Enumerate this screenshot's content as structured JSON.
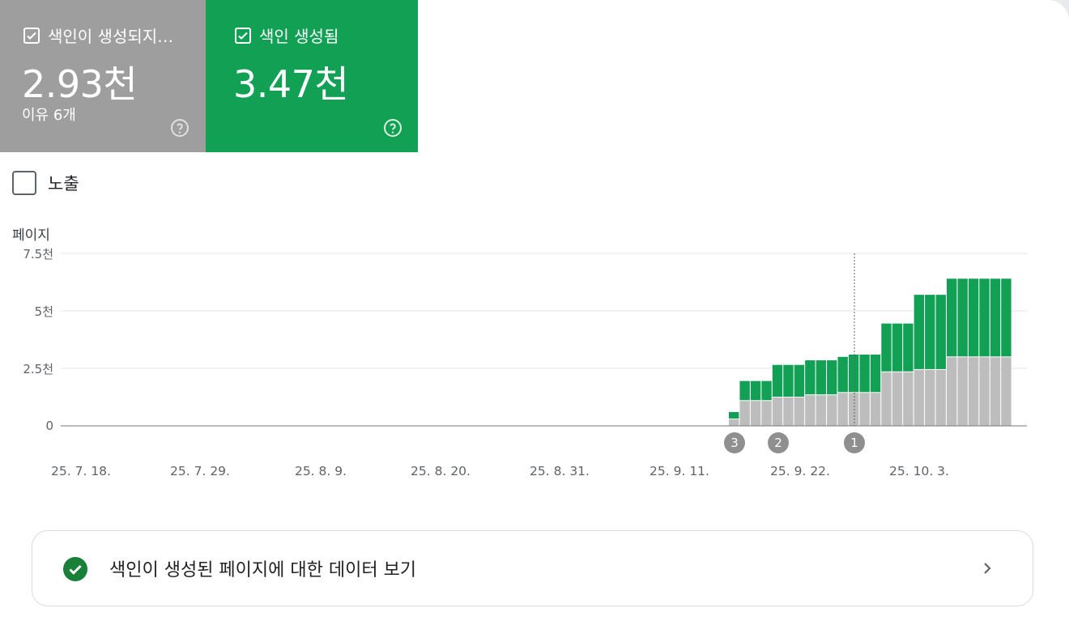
{
  "tiles": {
    "not_indexed": {
      "label": "색인이 생성되지…",
      "value": "2.93천",
      "sub": "이유 6개",
      "color": "#9e9e9e"
    },
    "indexed": {
      "label": "색인 생성됨",
      "value": "3.47천",
      "color": "#11a054"
    }
  },
  "impressions_label": "노출",
  "chart": {
    "y_title": "페이지",
    "y_ticks": [
      "7.5천",
      "5천",
      "2.5천",
      "0"
    ],
    "x_ticks": [
      "25. 7. 18.",
      "25. 7. 29.",
      "25. 8. 9.",
      "25. 8. 20.",
      "25. 8. 31.",
      "25. 9. 11.",
      "25. 9. 22.",
      "25. 10. 3."
    ],
    "markers": [
      "3",
      "2",
      "1"
    ]
  },
  "chart_data": {
    "type": "bar",
    "stacked": true,
    "ylabel": "페이지",
    "ylim": [
      0,
      7500
    ],
    "y_tick_values": [
      0,
      2500,
      5000,
      7500
    ],
    "categories": [
      "25. 9. 16.",
      "25. 9. 17.",
      "25. 9. 18.",
      "25. 9. 19.",
      "25. 9. 20.",
      "25. 9. 21.",
      "25. 9. 22.",
      "25. 9. 23.",
      "25. 9. 24.",
      "25. 9. 25.",
      "25. 9. 26.",
      "25. 9. 27.",
      "25. 9. 28.",
      "25. 9. 29.",
      "25. 9. 30.",
      "25. 10. 1.",
      "25. 10. 2.",
      "25. 10. 3.",
      "25. 10. 4.",
      "25. 10. 5.",
      "25. 10. 6.",
      "25. 10. 7.",
      "25. 10. 8.",
      "25. 10. 9.",
      "25. 10. 10.",
      "25. 10. 11."
    ],
    "series": [
      {
        "color": "#bdbdbd",
        "values": [
          300,
          1100,
          1100,
          1100,
          1250,
          1250,
          1250,
          1350,
          1350,
          1350,
          1450,
          1450,
          1450,
          1450,
          2350,
          2350,
          2350,
          2450,
          2450,
          2450,
          3000,
          3000,
          3000,
          3000,
          3000,
          3000
        ]
      },
      {
        "color": "#11a054",
        "values": [
          300,
          850,
          850,
          850,
          1400,
          1400,
          1400,
          1500,
          1500,
          1500,
          1550,
          1650,
          1650,
          1650,
          2100,
          2100,
          2100,
          3250,
          3250,
          3250,
          3400,
          3400,
          3400,
          3400,
          3400,
          3400
        ]
      }
    ]
  },
  "link_card": {
    "text": "색인이 생성된 페이지에 대한 데이터 보기"
  }
}
